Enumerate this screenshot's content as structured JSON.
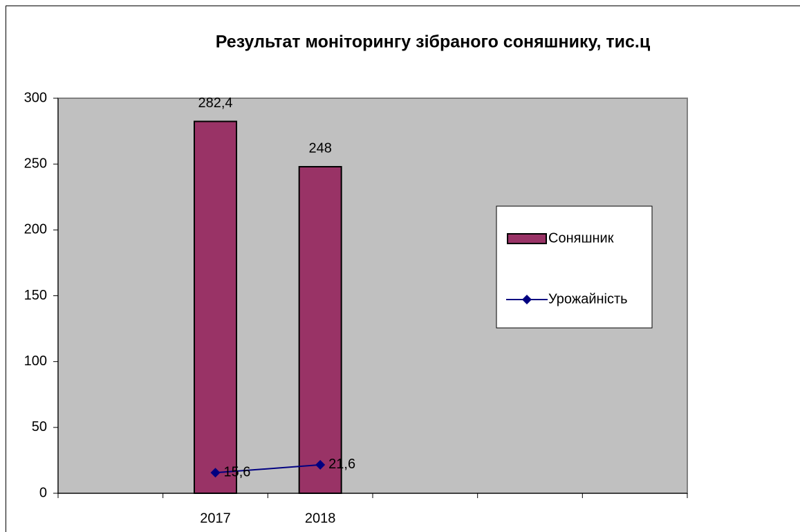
{
  "chart_data": {
    "type": "bar",
    "title": "Результат моніторингу зібраного соняшнику, тис.ц",
    "categories": [
      null,
      "2017",
      "2018",
      null,
      null,
      null
    ],
    "series": [
      {
        "name": "Соняшник",
        "type": "bar",
        "color": "#993366",
        "values": [
          null,
          282.4,
          248,
          null,
          null,
          null
        ],
        "value_labels": [
          null,
          "282,4",
          "248",
          null,
          null,
          null
        ]
      },
      {
        "name": "Урожайність",
        "type": "line",
        "color": "#000080",
        "values": [
          null,
          15.6,
          21.6,
          null,
          null,
          null
        ],
        "value_labels": [
          null,
          "15,6",
          "21,6",
          null,
          null,
          null
        ]
      }
    ],
    "ylim": [
      0,
      300
    ],
    "yticks": [
      0,
      50,
      100,
      150,
      200,
      250,
      300
    ],
    "legend": "right",
    "plot_background": "#c0c0c0"
  }
}
